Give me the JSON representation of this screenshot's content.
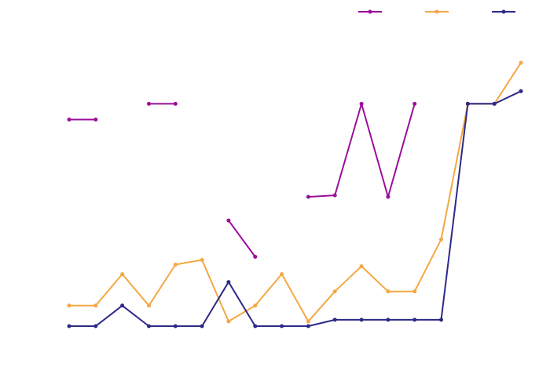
{
  "chart_data": {
    "type": "line",
    "x": [
      1,
      2,
      3,
      4,
      5,
      6,
      7,
      8,
      9,
      10,
      11,
      12,
      13,
      14,
      15,
      16,
      17,
      18
    ],
    "xlim": [
      1,
      18
    ],
    "ylim": [
      0,
      17.9
    ],
    "grid": false,
    "legend": "top-right",
    "series": [
      {
        "color": "#9b0e9b",
        "values": [
          13.3,
          13.3,
          null,
          14.3,
          14.3,
          null,
          6.9,
          4.6,
          null,
          8.4,
          8.5,
          14.3,
          8.4,
          14.3,
          null,
          14.3,
          14.3,
          null
        ]
      },
      {
        "color": "#f5a742",
        "values": [
          1.5,
          1.5,
          3.5,
          1.5,
          4.1,
          4.4,
          0.5,
          1.5,
          3.5,
          0.5,
          2.4,
          4.0,
          2.4,
          2.4,
          5.7,
          14.3,
          14.3,
          16.9
        ]
      },
      {
        "color": "#2c2a86",
        "values": [
          0.2,
          0.2,
          1.5,
          0.2,
          0.2,
          0.2,
          3.0,
          0.2,
          0.2,
          0.2,
          0.6,
          0.6,
          0.6,
          0.6,
          0.6,
          14.3,
          14.3,
          15.1
        ]
      }
    ]
  }
}
